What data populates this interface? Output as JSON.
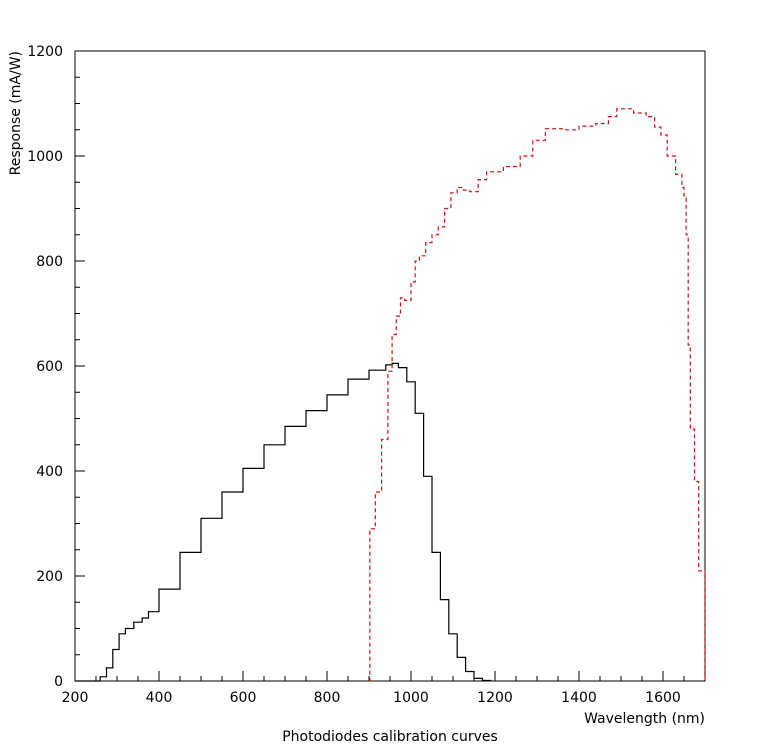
{
  "caption": "Photodiodes calibration curves",
  "chart_data": {
    "type": "line",
    "title": "",
    "xlabel": "Wavelength (nm)",
    "ylabel": "Response (mA/W)",
    "xlim": [
      200,
      1700
    ],
    "ylim": [
      0,
      1200
    ],
    "x_ticks": [
      200,
      400,
      600,
      800,
      1000,
      1200,
      1400,
      1600
    ],
    "y_ticks": [
      0,
      200,
      400,
      600,
      800,
      1000,
      1200
    ],
    "grid": false,
    "series": [
      {
        "style": "solid",
        "color": "#000000",
        "points": [
          [
            200,
            0
          ],
          [
            240,
            0
          ],
          [
            260,
            8
          ],
          [
            275,
            25
          ],
          [
            290,
            60
          ],
          [
            305,
            90
          ],
          [
            320,
            100
          ],
          [
            340,
            112
          ],
          [
            360,
            120
          ],
          [
            375,
            132
          ],
          [
            400,
            175
          ],
          [
            450,
            245
          ],
          [
            500,
            310
          ],
          [
            550,
            360
          ],
          [
            600,
            405
          ],
          [
            650,
            450
          ],
          [
            700,
            485
          ],
          [
            750,
            515
          ],
          [
            800,
            545
          ],
          [
            850,
            575
          ],
          [
            900,
            592
          ],
          [
            940,
            602
          ],
          [
            955,
            605
          ],
          [
            970,
            597
          ],
          [
            990,
            570
          ],
          [
            1010,
            510
          ],
          [
            1030,
            390
          ],
          [
            1050,
            245
          ],
          [
            1070,
            155
          ],
          [
            1090,
            90
          ],
          [
            1110,
            45
          ],
          [
            1130,
            18
          ],
          [
            1150,
            5
          ],
          [
            1170,
            1
          ],
          [
            1190,
            0
          ]
        ]
      },
      {
        "style": "dashed",
        "color": "#d01010",
        "points": [
          [
            900,
            0
          ],
          [
            902,
            290
          ],
          [
            915,
            360
          ],
          [
            930,
            460
          ],
          [
            945,
            590
          ],
          [
            955,
            660
          ],
          [
            965,
            695
          ],
          [
            975,
            730
          ],
          [
            985,
            725
          ],
          [
            1000,
            760
          ],
          [
            1010,
            800
          ],
          [
            1020,
            810
          ],
          [
            1035,
            835
          ],
          [
            1050,
            850
          ],
          [
            1065,
            865
          ],
          [
            1080,
            900
          ],
          [
            1095,
            930
          ],
          [
            1110,
            940
          ],
          [
            1125,
            935
          ],
          [
            1140,
            932
          ],
          [
            1160,
            955
          ],
          [
            1180,
            970
          ],
          [
            1220,
            980
          ],
          [
            1260,
            1000
          ],
          [
            1290,
            1030
          ],
          [
            1320,
            1052
          ],
          [
            1360,
            1050
          ],
          [
            1400,
            1057
          ],
          [
            1440,
            1062
          ],
          [
            1470,
            1075
          ],
          [
            1490,
            1090
          ],
          [
            1510,
            1090
          ],
          [
            1530,
            1082
          ],
          [
            1560,
            1075
          ],
          [
            1580,
            1055
          ],
          [
            1595,
            1040
          ],
          [
            1610,
            1000
          ],
          [
            1630,
            965
          ],
          [
            1645,
            940
          ],
          [
            1650,
            920
          ],
          [
            1655,
            850
          ],
          [
            1660,
            640
          ],
          [
            1665,
            480
          ],
          [
            1675,
            380
          ],
          [
            1685,
            210
          ],
          [
            1695,
            210
          ],
          [
            1700,
            0
          ]
        ]
      }
    ]
  }
}
